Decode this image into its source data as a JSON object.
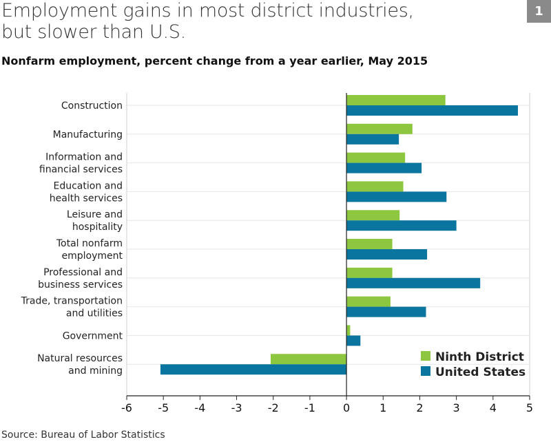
{
  "badge": "1",
  "source": "Source: Bureau of Labor Statistics",
  "colors": {
    "ninth": "#8dc63f",
    "us": "#0a76a0"
  },
  "chart_data": {
    "type": "bar",
    "orientation": "horizontal",
    "title_lines": [
      "Employment gains in most district industries,",
      "but slower than U.S."
    ],
    "subtitle": "Nonfarm employment, percent change from a year earlier, May 2015",
    "categories": [
      [
        "Construction"
      ],
      [
        "Manufacturing"
      ],
      [
        "Information and",
        "financial services"
      ],
      [
        "Education and",
        "health services"
      ],
      [
        "Leisure and",
        "hospitality"
      ],
      [
        "Total nonfarm",
        "employment"
      ],
      [
        "Professional and",
        "business services"
      ],
      [
        "Trade, transportation",
        "and utilities"
      ],
      [
        "Government"
      ],
      [
        "Natural resources",
        "and mining"
      ]
    ],
    "series": [
      {
        "name": "Ninth District",
        "values": [
          2.7,
          1.8,
          1.6,
          1.55,
          1.45,
          1.25,
          1.25,
          1.2,
          0.1,
          -2.07
        ]
      },
      {
        "name": "United States",
        "values": [
          4.68,
          1.43,
          2.05,
          2.73,
          3.0,
          2.2,
          3.65,
          2.17,
          0.38,
          -5.08
        ]
      }
    ],
    "xlim": [
      -6,
      5
    ],
    "xticks": [
      "-6",
      "-5",
      "-4",
      "-3",
      "-2",
      "-1",
      "0",
      "1",
      "2",
      "3",
      "4",
      "5"
    ],
    "legend_position": "bottom-right"
  }
}
